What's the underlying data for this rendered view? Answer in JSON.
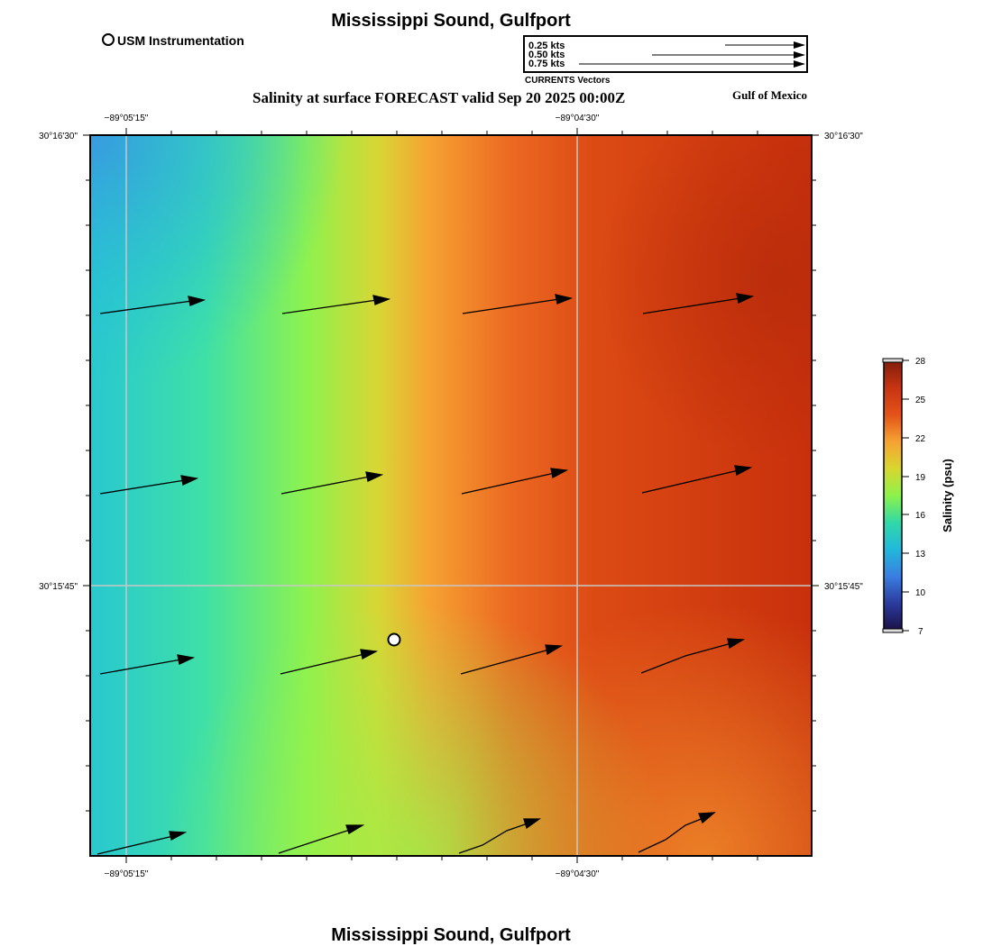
{
  "header": {
    "title_top": "Mississippi Sound, Gulfport",
    "title_bottom": "Mississippi Sound, Gulfport",
    "subtitle": "Salinity at surface FORECAST valid Sep 20 2025 00:00Z",
    "region_label": "Gulf of Mexico"
  },
  "legend": {
    "instrumentation_label": "USM Instrumentation",
    "vector_scale": [
      {
        "label": "0.25 kts",
        "speed": 0.25
      },
      {
        "label": "0.50 kts",
        "speed": 0.5
      },
      {
        "label": "0.75 kts",
        "speed": 0.75
      }
    ],
    "vector_title": "CURRENTS Vectors"
  },
  "map": {
    "lon_labels": [
      "−89°05'15\"",
      "−89°04'30\""
    ],
    "lat_labels": [
      "30°16'30\"",
      "30°15'45\""
    ],
    "gridlines": true,
    "station_marker": "usm-instrumentation-station",
    "salinity_field": "surface salinity, psu: low (~13) in northwest, rising to ~26-27 in east"
  },
  "colorbar": {
    "title": "Salinity (psu)",
    "ticks": [
      "28",
      "25",
      "22",
      "19",
      "16",
      "13",
      "10",
      "7"
    ],
    "min": 7,
    "max": 28,
    "colors": [
      "#7f1d0a",
      "#c63412",
      "#f26a1f",
      "#f7a431",
      "#d9d630",
      "#8df24a",
      "#30d9a8",
      "#21c4d9",
      "#3a8de0",
      "#2b3a9c",
      "#1a1145"
    ]
  },
  "colors": {
    "low_salinity": "#2ea3dc",
    "mid_salinity": "#8ef24e",
    "high_salinity": "#c8300c",
    "grid": "#c8c8c8",
    "vector": "#000000"
  }
}
